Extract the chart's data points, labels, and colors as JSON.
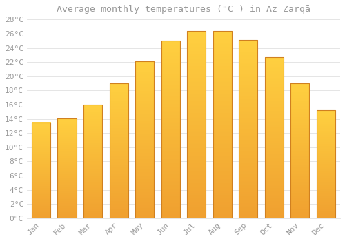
{
  "title": "Average monthly temperatures (°C ) in Az Zarqā",
  "months": [
    "Jan",
    "Feb",
    "Mar",
    "Apr",
    "May",
    "Jun",
    "Jul",
    "Aug",
    "Sep",
    "Oct",
    "Nov",
    "Dec"
  ],
  "values": [
    13.5,
    14.1,
    16.0,
    19.0,
    22.1,
    25.0,
    26.4,
    26.4,
    25.1,
    22.7,
    19.0,
    15.2
  ],
  "bar_color_bottom": "#F0A030",
  "bar_color_top": "#FFD040",
  "bar_edge_color": "#D08020",
  "ytick_step": 2,
  "ymin": 0,
  "ymax": 28,
  "background_color": "#FFFFFF",
  "grid_color": "#E0E0E0",
  "text_color": "#999999",
  "title_fontsize": 9.5,
  "tick_fontsize": 8
}
